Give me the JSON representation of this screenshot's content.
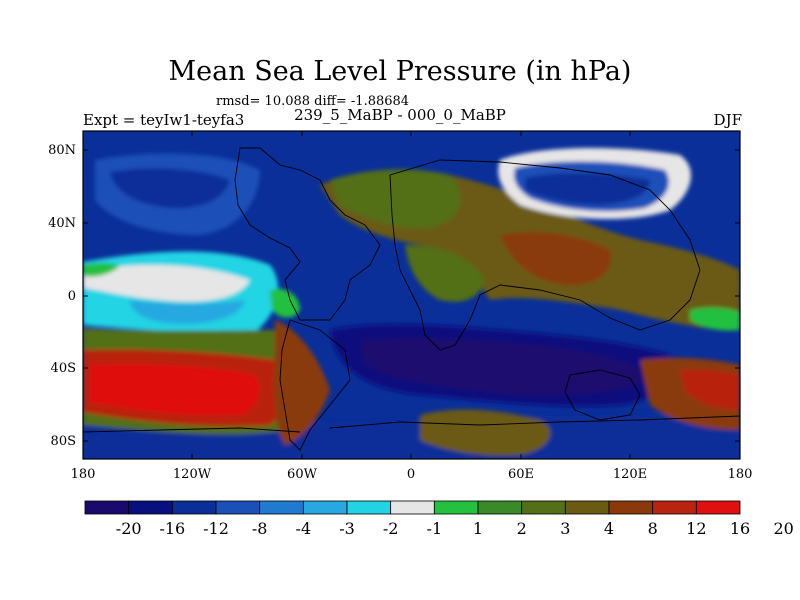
{
  "title": "Mean Sea Level Pressure (in hPa)",
  "stats_text": "rmsd= 10.088 diff= -1.88684",
  "expt_text": "Expt = teyIw1-teyfa3",
  "period_text": "239_5_MaBP - 000_0_MaBP",
  "season_text": "DJF",
  "lat_ticks": [
    "80N",
    "40N",
    "0",
    "40S",
    "80S"
  ],
  "lon_ticks": [
    "180",
    "120W",
    "60W",
    "0",
    "60E",
    "120E",
    "180"
  ],
  "colorbar": {
    "colors": [
      "#1a0a6e",
      "#08107e",
      "#0a2f99",
      "#1a50b8",
      "#1f7ad0",
      "#27a8e0",
      "#20d4e4",
      "#e6e6e6",
      "#24c040",
      "#3a8a2a",
      "#537018",
      "#6a5a12",
      "#8a3a0a",
      "#b82410",
      "#e01010"
    ],
    "labels": [
      "-20",
      "-16",
      "-12",
      "-8",
      "-4",
      "-3",
      "-2",
      "-1",
      "1",
      "2",
      "3",
      "4",
      "8",
      "12",
      "16",
      "20"
    ]
  }
}
